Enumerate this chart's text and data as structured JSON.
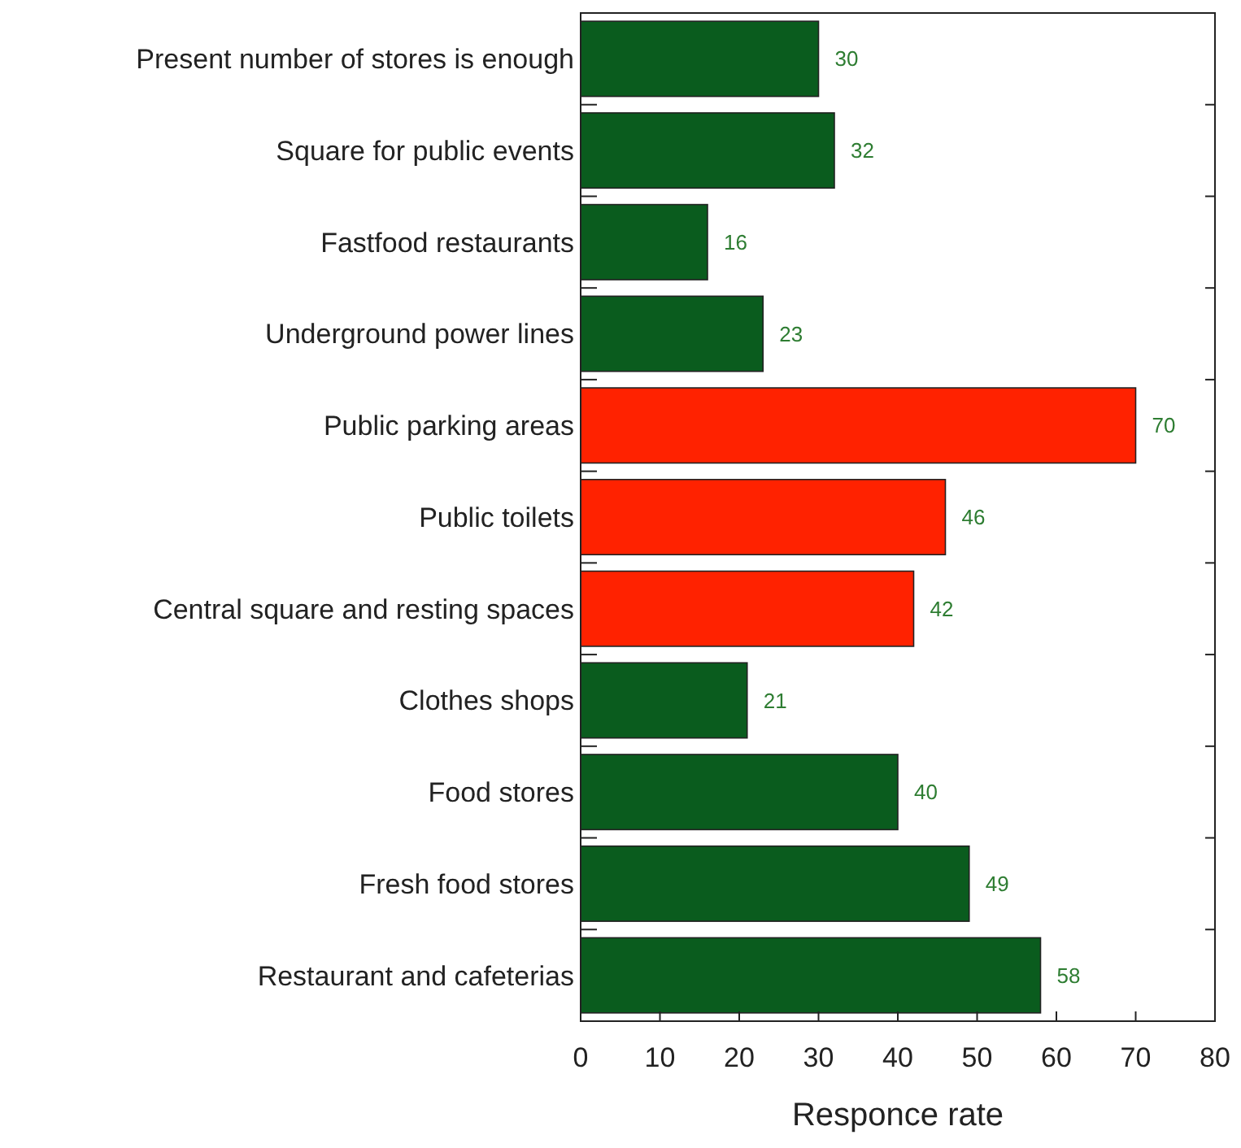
{
  "chart_data": {
    "type": "bar",
    "orientation": "horizontal",
    "xlabel": "Responce rate",
    "categories": [
      "Present number of stores is enough",
      "Square for public events",
      "Fastfood restaurants",
      "Underground power lines",
      "Public parking areas",
      "Public toilets",
      "Central square and resting spaces",
      "Clothes shops",
      "Food stores",
      "Fresh food stores",
      "Restaurant and cafeterias"
    ],
    "values": [
      30,
      32,
      16,
      23,
      70,
      46,
      42,
      21,
      40,
      49,
      58
    ],
    "colors": [
      "#0a5c1e",
      "#0a5c1e",
      "#0a5c1e",
      "#0a5c1e",
      "#ff2200",
      "#ff2200",
      "#ff2200",
      "#0a5c1e",
      "#0a5c1e",
      "#0a5c1e",
      "#0a5c1e"
    ],
    "xlim": [
      0,
      80
    ],
    "xticks": [
      0,
      10,
      20,
      30,
      40,
      50,
      60,
      70,
      80
    ],
    "data_labels": true
  }
}
